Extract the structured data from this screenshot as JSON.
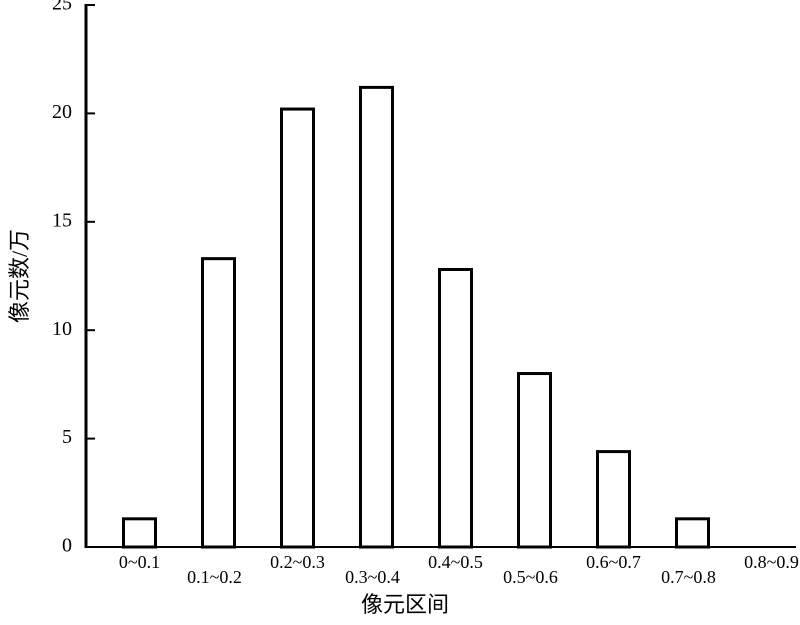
{
  "chart_data": {
    "type": "bar",
    "x_label": "像元区间",
    "y_label": "像元数/万",
    "categories": [
      "0~0.1",
      "0.1~0.2",
      "0.2~0.3",
      "0.3~0.4",
      "0.4~0.5",
      "0.5~0.6",
      "0.6~0.7",
      "0.7~0.8",
      "0.8~0.9"
    ],
    "values": [
      1.3,
      13.3,
      20.2,
      21.2,
      12.8,
      8.0,
      4.4,
      1.3,
      0
    ],
    "color": "#ffffff",
    "ylim": [
      0,
      25
    ],
    "yticks": [
      0,
      5,
      10,
      15,
      20,
      25
    ],
    "grid": false
  }
}
